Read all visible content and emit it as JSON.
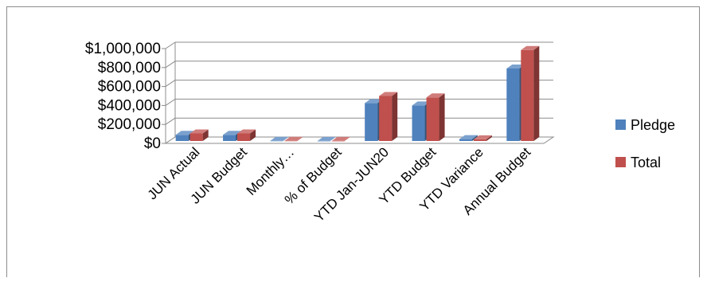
{
  "chart_data": {
    "type": "bar",
    "title": "",
    "xlabel": "",
    "ylabel": "",
    "ylim": [
      0,
      1000000
    ],
    "y_ticks": [
      "$0",
      "$200,000",
      "$400,000",
      "$600,000",
      "$800,000",
      "$1,000,000"
    ],
    "categories": [
      "JUN Actual",
      "JUN Budget",
      "Monthly…",
      "% of Budget",
      "YTD Jan-JUN20",
      "YTD Budget",
      "YTD Variance",
      "Annual Budget"
    ],
    "series": [
      {
        "name": "Pledge",
        "color": "#4f81bd",
        "values": [
          65000,
          65000,
          2000,
          1000,
          400000,
          375000,
          20000,
          765000
        ]
      },
      {
        "name": "Total",
        "color": "#c0504d",
        "values": [
          80000,
          80000,
          2000,
          1000,
          475000,
          460000,
          18000,
          960000
        ]
      }
    ],
    "grid": true,
    "legend": "right",
    "style": "3d-clustered-column"
  }
}
